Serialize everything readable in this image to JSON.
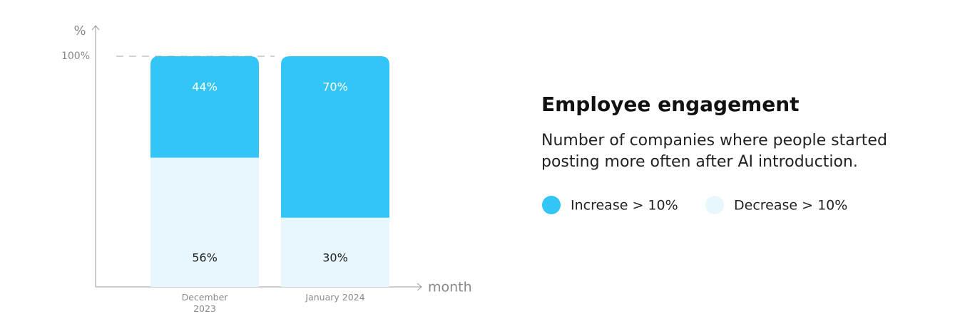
{
  "chart_data": {
    "type": "bar",
    "stacked": true,
    "title": "Employee engagement",
    "subtitle": "Number of companies where people started posting more often after AI introduction.",
    "y_label": "%",
    "x_label": "month",
    "categories": [
      "December 2023",
      "January 2024"
    ],
    "series": [
      {
        "name": "Increase > 10%",
        "color": "#33c5f5",
        "values": [
          44,
          70
        ],
        "value_labels": [
          "44%",
          "70%"
        ]
      },
      {
        "name": "Decrease > 10%",
        "color": "#e8f7fd",
        "values": [
          56,
          30
        ],
        "value_labels": [
          "56%",
          "30%"
        ]
      }
    ],
    "ylim": [
      0,
      100
    ],
    "yticks": [
      {
        "value": 100,
        "label": "100%"
      }
    ],
    "grid": true
  }
}
